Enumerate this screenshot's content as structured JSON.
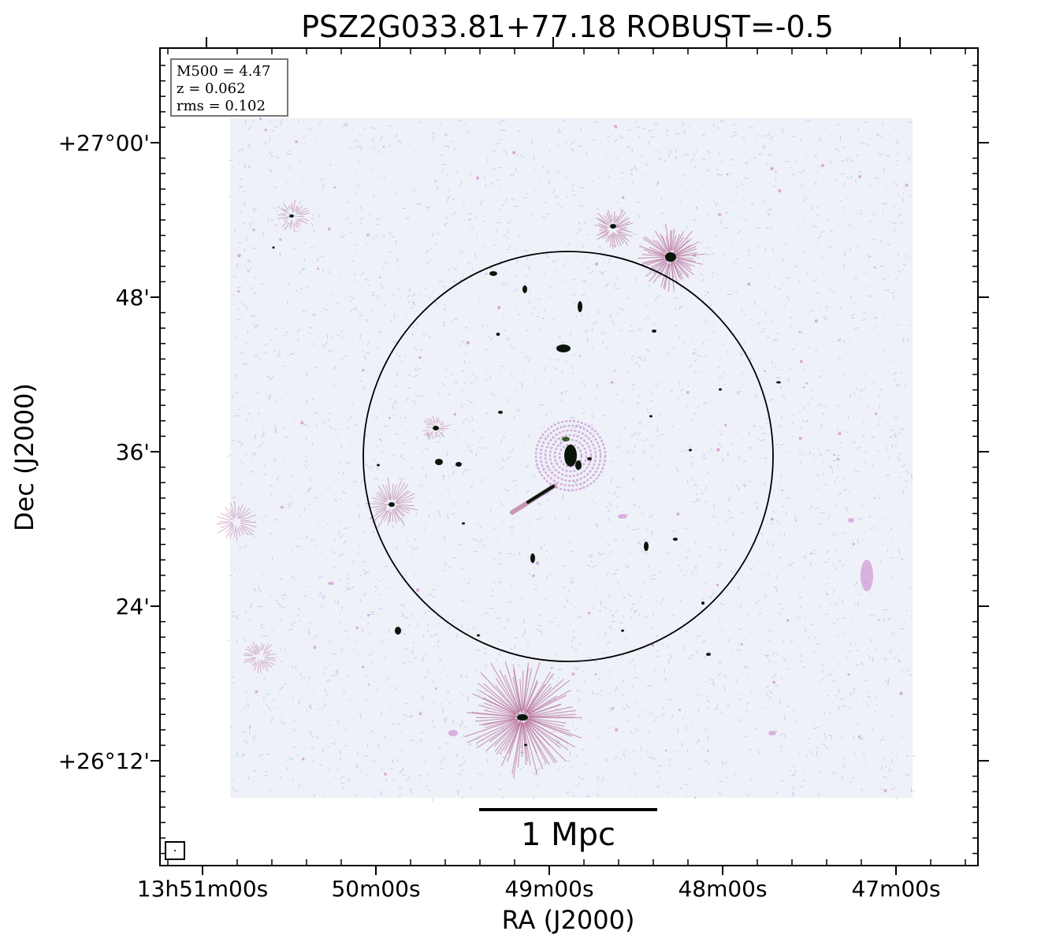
{
  "title": "PSZ2G033.81+77.18 ROBUST=-0.5",
  "info": {
    "m500": "M500 = 4.47",
    "z": "z = 0.062",
    "rms": "rms = 0.102"
  },
  "axes": {
    "xlabel": "RA (J2000)",
    "ylabel": "Dec (J2000)",
    "xticks": [
      "13h51m00s",
      "50m00s",
      "49m00s",
      "48m00s",
      "47m00s"
    ],
    "yticks": [
      "+27°00'",
      "48'",
      "36'",
      "24'",
      "+26°12'"
    ]
  },
  "scalebar": {
    "label": "1 Mpc"
  },
  "colors": {
    "noise": "#8fa6e0",
    "halo": "#c87cc8",
    "source": "#0b160b",
    "sidelobe": "#b05a8a",
    "frame": "#000000"
  }
}
